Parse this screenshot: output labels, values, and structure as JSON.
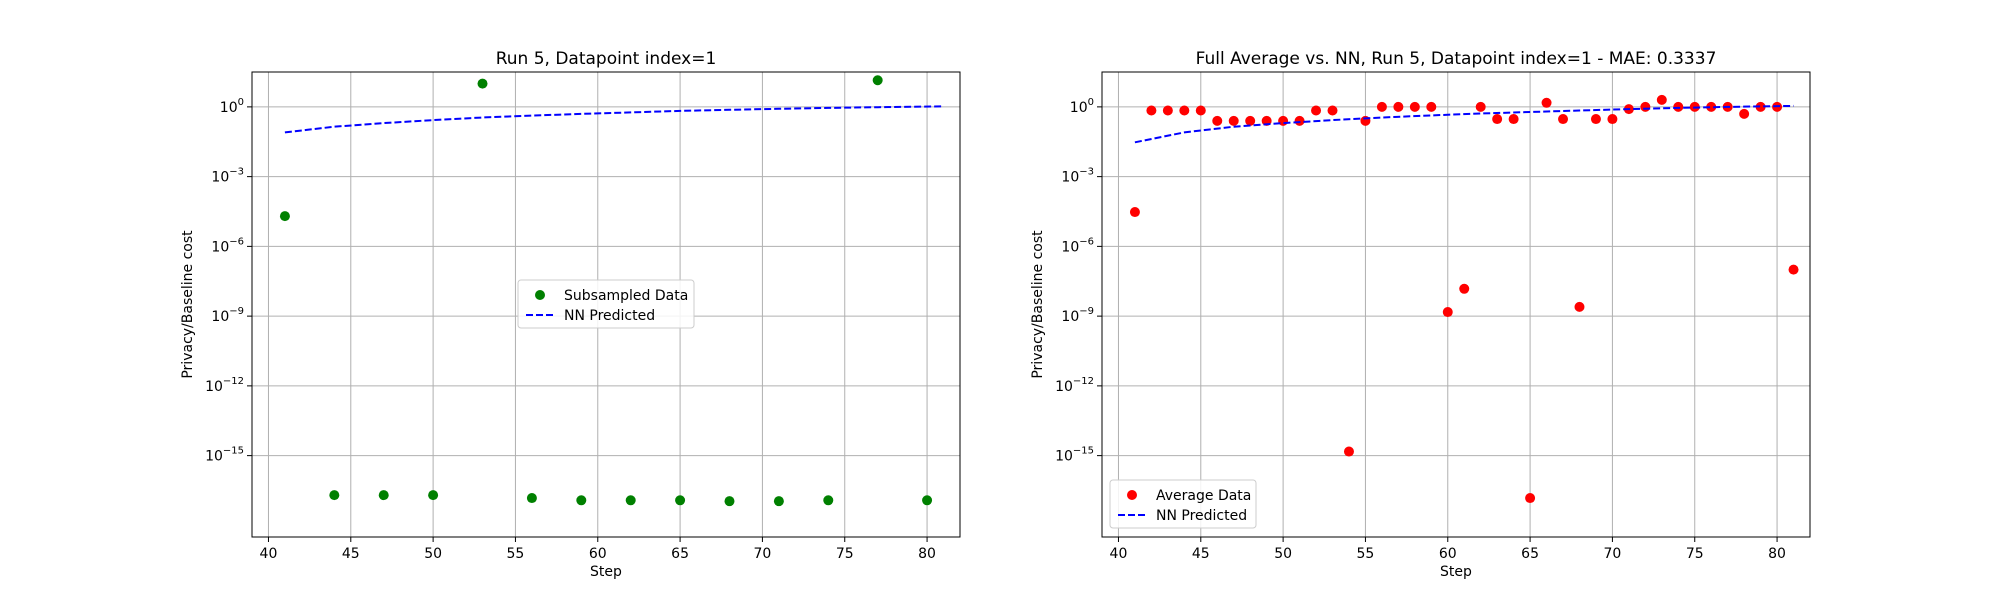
{
  "chart_data": [
    {
      "type": "scatter",
      "title": "Run 5, Datapoint index=1",
      "xlabel": "Step",
      "ylabel": "Privacy/Baseline cost",
      "xlim": [
        39,
        82
      ],
      "ylim_log10": [
        -18.5,
        1.5
      ],
      "yscale": "log",
      "grid": true,
      "legend_position": "center",
      "x_ticks": [
        40,
        45,
        50,
        55,
        60,
        65,
        70,
        75,
        80
      ],
      "y_ticks_exp": [
        0,
        -3,
        -6,
        -9,
        -12,
        -15
      ],
      "series": [
        {
          "name": "Subsampled Data",
          "kind": "scatter",
          "color": "#008000",
          "points": [
            [
              41,
              2e-05
            ],
            [
              44,
              2e-17
            ],
            [
              47,
              2e-17
            ],
            [
              50,
              2e-17
            ],
            [
              53,
              10
            ],
            [
              56,
              1.5e-17
            ],
            [
              59,
              1.2e-17
            ],
            [
              62,
              1.2e-17
            ],
            [
              65,
              1.2e-17
            ],
            [
              68,
              1.1e-17
            ],
            [
              71,
              1.1e-17
            ],
            [
              74,
              1.2e-17
            ],
            [
              77,
              14
            ],
            [
              80,
              1.2e-17
            ]
          ]
        },
        {
          "name": "NN Predicted",
          "kind": "line",
          "color": "#0000ff",
          "points": [
            [
              41,
              0.08
            ],
            [
              44,
              0.14
            ],
            [
              47,
              0.2
            ],
            [
              50,
              0.27
            ],
            [
              53,
              0.35
            ],
            [
              56,
              0.42
            ],
            [
              59,
              0.5
            ],
            [
              62,
              0.58
            ],
            [
              65,
              0.67
            ],
            [
              68,
              0.75
            ],
            [
              71,
              0.83
            ],
            [
              74,
              0.9
            ],
            [
              77,
              0.97
            ],
            [
              81,
              1.05
            ]
          ]
        }
      ]
    },
    {
      "type": "scatter",
      "title": "Full Average vs. NN, Run 5, Datapoint index=1 - MAE: 0.3337",
      "xlabel": "Step",
      "ylabel": "Privacy/Baseline cost",
      "xlim": [
        39,
        82
      ],
      "ylim_log10": [
        -18.5,
        1.5
      ],
      "yscale": "log",
      "grid": true,
      "legend_position": "lower left",
      "x_ticks": [
        40,
        45,
        50,
        55,
        60,
        65,
        70,
        75,
        80
      ],
      "y_ticks_exp": [
        0,
        -3,
        -6,
        -9,
        -12,
        -15
      ],
      "series": [
        {
          "name": "Average Data",
          "kind": "scatter",
          "color": "#ff0000",
          "points": [
            [
              41,
              3e-05
            ],
            [
              42,
              0.7
            ],
            [
              43,
              0.7
            ],
            [
              44,
              0.7
            ],
            [
              45,
              0.7
            ],
            [
              46,
              0.25
            ],
            [
              47,
              0.25
            ],
            [
              48,
              0.25
            ],
            [
              49,
              0.25
            ],
            [
              50,
              0.25
            ],
            [
              51,
              0.25
            ],
            [
              52,
              0.7
            ],
            [
              53,
              0.7
            ],
            [
              54,
              1.5e-15
            ],
            [
              55,
              0.25
            ],
            [
              56,
              1.0
            ],
            [
              57,
              1.0
            ],
            [
              58,
              1.0
            ],
            [
              59,
              1.0
            ],
            [
              60,
              1.5e-09
            ],
            [
              61,
              1.5e-08
            ],
            [
              62,
              1.0
            ],
            [
              63,
              0.3
            ],
            [
              64,
              0.3
            ],
            [
              65,
              1.5e-17
            ],
            [
              66,
              1.5
            ],
            [
              67,
              0.3
            ],
            [
              68,
              2.5e-09
            ],
            [
              69,
              0.3
            ],
            [
              70,
              0.3
            ],
            [
              71,
              0.8
            ],
            [
              72,
              1.0
            ],
            [
              73,
              2.0
            ],
            [
              74,
              1.0
            ],
            [
              75,
              1.0
            ],
            [
              76,
              1.0
            ],
            [
              77,
              1.0
            ],
            [
              78,
              0.5
            ],
            [
              79,
              1.0
            ],
            [
              80,
              1.0
            ],
            [
              81,
              1e-07
            ]
          ]
        },
        {
          "name": "NN Predicted",
          "kind": "line",
          "color": "#0000ff",
          "points": [
            [
              41,
              0.03
            ],
            [
              44,
              0.08
            ],
            [
              47,
              0.14
            ],
            [
              50,
              0.2
            ],
            [
              53,
              0.27
            ],
            [
              56,
              0.35
            ],
            [
              59,
              0.43
            ],
            [
              62,
              0.52
            ],
            [
              65,
              0.6
            ],
            [
              68,
              0.7
            ],
            [
              71,
              0.8
            ],
            [
              74,
              0.9
            ],
            [
              77,
              1.0
            ],
            [
              81,
              1.1
            ]
          ]
        }
      ]
    }
  ]
}
